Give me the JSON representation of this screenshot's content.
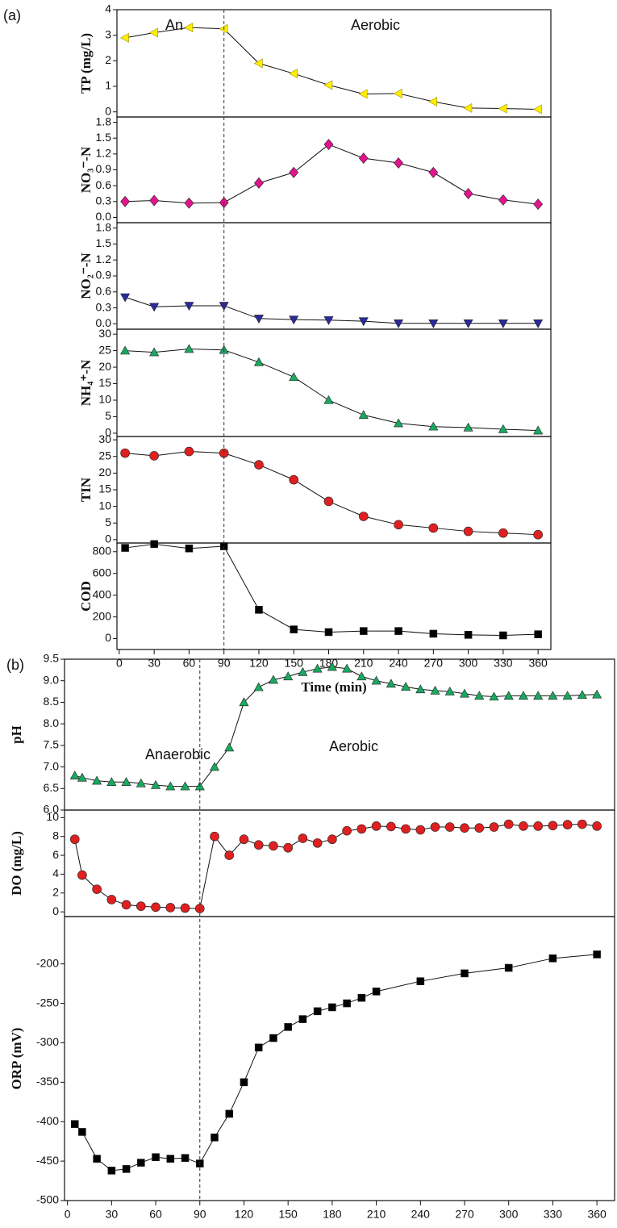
{
  "chart_data": [
    {
      "type": "line",
      "label": "(a)",
      "annotations": [
        "An",
        "Aerobic"
      ],
      "xlabel": "Time (min)",
      "xlim": [
        -2,
        371
      ],
      "xticks": [
        0,
        30,
        60,
        90,
        120,
        150,
        180,
        210,
        240,
        270,
        300,
        330,
        360
      ],
      "vline": 90,
      "x": [
        5,
        30,
        60,
        90,
        120,
        150,
        180,
        210,
        240,
        270,
        300,
        330,
        360
      ],
      "panels": [
        {
          "ylabel": "TP (mg/L)",
          "marker": "triangle-left",
          "color": "#ffee00",
          "ylim": [
            -0.2,
            4
          ],
          "yticks": [
            0,
            1,
            2,
            3,
            4
          ],
          "values": [
            2.9,
            3.1,
            3.3,
            3.25,
            1.9,
            1.5,
            1.05,
            0.7,
            0.72,
            0.4,
            0.15,
            0.13,
            0.1
          ]
        },
        {
          "ylabel": "NO₃⁻-N",
          "marker": "diamond",
          "color": "#e0148c",
          "ylim": [
            -0.1,
            1.9
          ],
          "yticks": [
            {
              "value": 0,
              "label": "0.0"
            },
            0.3,
            0.6,
            0.9,
            1.2,
            1.5,
            1.8
          ],
          "values": [
            0.3,
            0.32,
            0.27,
            0.28,
            0.65,
            0.85,
            1.38,
            1.12,
            1.03,
            0.85,
            0.45,
            0.33,
            0.25
          ]
        },
        {
          "ylabel": "NO₂⁻-N",
          "marker": "triangle-down",
          "color": "#2a2a9a",
          "ylim": [
            -0.1,
            1.9
          ],
          "yticks": [
            {
              "value": 0,
              "label": "0.0"
            },
            0.3,
            0.6,
            0.9,
            1.2,
            1.5,
            1.8
          ],
          "values": [
            0.5,
            0.32,
            0.34,
            0.34,
            0.1,
            0.08,
            0.07,
            0.05,
            0.01,
            0.01,
            0.01,
            0.01,
            0.01
          ]
        },
        {
          "ylabel": "NH₄⁺-N",
          "marker": "triangle-up",
          "color": "#1aa860",
          "ylim": [
            -1,
            31.5
          ],
          "yticks": [
            0,
            5,
            10,
            15,
            20,
            25,
            30
          ],
          "values": [
            25,
            24.5,
            25.5,
            25.2,
            21.5,
            17,
            10,
            5.5,
            3,
            2,
            1.7,
            1.2,
            0.8
          ]
        },
        {
          "ylabel": "TIN",
          "marker": "circle",
          "color": "#e02020",
          "ylim": [
            -1,
            31
          ],
          "yticks": [
            0,
            5,
            10,
            15,
            20,
            25,
            30
          ],
          "values": [
            26,
            25.2,
            26.5,
            26,
            22.5,
            18,
            11.5,
            7,
            4.5,
            3.5,
            2.5,
            2,
            1.5
          ]
        },
        {
          "ylabel": "COD",
          "marker": "square",
          "color": "#000000",
          "ylim": [
            -100,
            880
          ],
          "yticks": [
            0,
            200,
            400,
            600,
            800
          ],
          "values": [
            835,
            870,
            830,
            850,
            265,
            85,
            60,
            70,
            70,
            45,
            35,
            30,
            40
          ]
        }
      ]
    },
    {
      "type": "line",
      "label": "(b)",
      "annotations": [
        "Anaerobic",
        "Aerobic"
      ],
      "xlabel": "Time (min)",
      "xlim": [
        -2,
        372
      ],
      "xticks": [
        0,
        30,
        60,
        90,
        120,
        150,
        180,
        210,
        240,
        270,
        300,
        330,
        360
      ],
      "vline": 90,
      "panels": [
        {
          "ylabel": "pH",
          "marker": "triangle-up",
          "color": "#1aa860",
          "ylim": [
            6,
            9.5
          ],
          "yticks": [
            {
              "value": 6,
              "label": "6.0"
            },
            6.5,
            {
              "value": 7,
              "label": "7.0"
            },
            7.5,
            {
              "value": 8,
              "label": "8.0"
            },
            8.5,
            {
              "value": 9,
              "label": "9.0"
            },
            9.5
          ],
          "x": [
            5,
            10,
            20,
            30,
            40,
            50,
            60,
            70,
            80,
            90,
            100,
            110,
            120,
            130,
            140,
            150,
            160,
            170,
            180,
            190,
            200,
            210,
            220,
            230,
            240,
            250,
            260,
            270,
            280,
            290,
            300,
            310,
            320,
            330,
            340,
            350,
            360
          ],
          "values": [
            6.8,
            6.75,
            6.68,
            6.65,
            6.65,
            6.62,
            6.58,
            6.55,
            6.55,
            6.55,
            7.0,
            7.45,
            8.5,
            8.85,
            9.02,
            9.1,
            9.2,
            9.28,
            9.32,
            9.28,
            9.1,
            9.0,
            8.93,
            8.86,
            8.8,
            8.77,
            8.75,
            8.7,
            8.65,
            8.63,
            8.65,
            8.65,
            8.65,
            8.65,
            8.65,
            8.67,
            8.68
          ]
        },
        {
          "ylabel": "DO (mg/L)",
          "marker": "circle",
          "color": "#e02020",
          "ylim": [
            -0.5,
            10.8
          ],
          "yticks": [
            0,
            2,
            4,
            6,
            8,
            10
          ],
          "x": [
            5,
            10,
            20,
            30,
            40,
            50,
            60,
            70,
            80,
            90,
            100,
            110,
            120,
            130,
            140,
            150,
            160,
            170,
            180,
            190,
            200,
            210,
            220,
            230,
            240,
            250,
            260,
            270,
            280,
            290,
            300,
            310,
            320,
            330,
            340,
            350,
            360
          ],
          "values": [
            7.7,
            3.9,
            2.4,
            1.3,
            0.75,
            0.6,
            0.5,
            0.45,
            0.4,
            0.35,
            8.0,
            6.0,
            7.7,
            7.1,
            7.0,
            6.8,
            7.8,
            7.3,
            7.7,
            8.6,
            8.8,
            9.1,
            9.05,
            8.8,
            8.7,
            9.0,
            9.0,
            8.9,
            8.9,
            9.0,
            9.3,
            9.1,
            9.1,
            9.15,
            9.25,
            9.3,
            9.1
          ]
        },
        {
          "ylabel": "ORP (mV)",
          "marker": "square",
          "color": "#000000",
          "ylim": [
            -500,
            -140
          ],
          "yticks": [
            -500,
            -450,
            -400,
            -350,
            -300,
            -250,
            -200
          ],
          "x": [
            5,
            10,
            20,
            30,
            40,
            50,
            60,
            70,
            80,
            90,
            100,
            110,
            120,
            130,
            140,
            150,
            160,
            170,
            180,
            190,
            200,
            210,
            240,
            270,
            300,
            330,
            360
          ],
          "values": [
            -403,
            -413,
            -447,
            -462,
            -460,
            -452,
            -445,
            -447,
            -446,
            -453,
            -420,
            -390,
            -350,
            -306,
            -294,
            -280,
            -270,
            -260,
            -255,
            -250,
            -243,
            -235,
            -222,
            -212,
            -205,
            -193,
            -188
          ]
        }
      ]
    }
  ]
}
